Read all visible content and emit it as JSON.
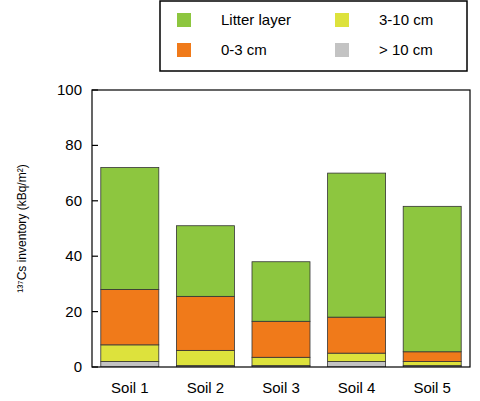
{
  "chart_data": {
    "type": "bar",
    "stacked": true,
    "y_label": "¹³⁷Cs inventory (kBq/m²)",
    "categories": [
      "Soil 1",
      "Soil 2",
      "Soil 3",
      "Soil 4",
      "Soil 5"
    ],
    "series": [
      {
        "name": "> 10 cm",
        "color": "#c3c3c3",
        "values": [
          2,
          0.5,
          0.5,
          2,
          0.5
        ]
      },
      {
        "name": "3-10 cm",
        "color": "#dde23c",
        "values": [
          6,
          5.5,
          3,
          3,
          1.5
        ]
      },
      {
        "name": "0-3 cm",
        "color": "#f07a1a",
        "values": [
          20,
          19.5,
          13,
          13,
          3.5
        ]
      },
      {
        "name": "Litter layer",
        "color": "#8dc63f",
        "values": [
          44,
          25.5,
          21.5,
          52,
          52.5
        ]
      }
    ],
    "ylim": [
      0,
      100
    ],
    "yticks": [
      0,
      20,
      40,
      60,
      80,
      100
    ],
    "grid": false,
    "legend": "top"
  }
}
